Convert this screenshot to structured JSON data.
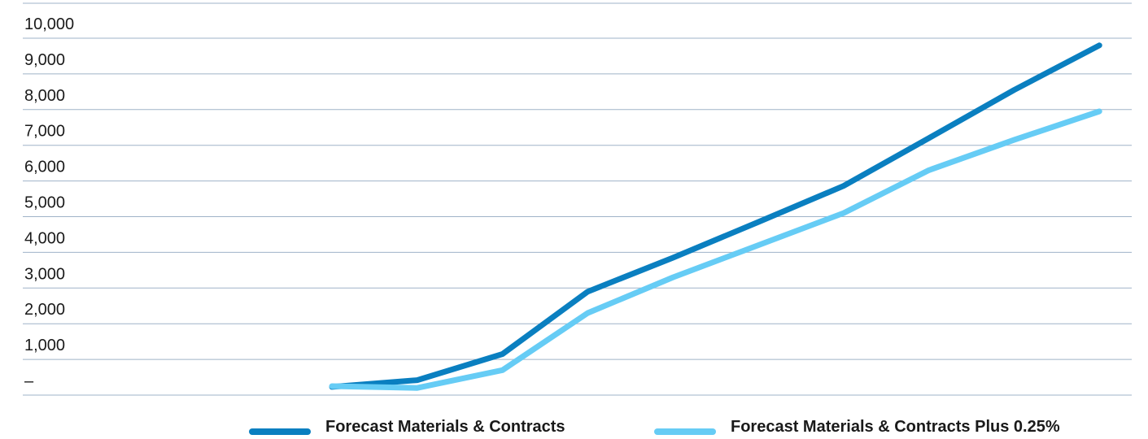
{
  "chart_data": {
    "type": "line",
    "x": [
      1,
      2,
      3,
      4,
      5,
      6,
      7,
      8,
      9,
      10,
      11,
      12,
      13,
      14,
      15,
      16,
      17,
      18,
      19,
      20,
      21,
      22,
      23,
      24,
      25,
      26,
      27,
      28
    ],
    "y_ticks": [
      {
        "value": 0,
        "label": "–"
      },
      {
        "value": 1000,
        "label": "1,000"
      },
      {
        "value": 2000,
        "label": "2,000"
      },
      {
        "value": 3000,
        "label": "3,000"
      },
      {
        "value": 4000,
        "label": "4,000"
      },
      {
        "value": 5000,
        "label": "5,000"
      },
      {
        "value": 6000,
        "label": "6,000"
      },
      {
        "value": 7000,
        "label": "7,000"
      },
      {
        "value": 8000,
        "label": "8,000"
      },
      {
        "value": 9000,
        "label": "9,000"
      },
      {
        "value": 10000,
        "label": "10,000"
      }
    ],
    "ylim": [
      0,
      11000
    ],
    "grid": true,
    "legend_position": "bottom-right",
    "series": [
      {
        "name": "Forecast Materials & Contracts",
        "color": "#0a7fc0",
        "values": [
          null,
          null,
          null,
          null,
          null,
          null,
          null,
          null,
          230,
          420,
          1150,
          2900,
          3850,
          4850,
          5860,
          7200,
          8550,
          9800,
          null,
          null,
          null,
          null,
          null,
          null,
          null,
          null,
          null,
          null
        ]
      },
      {
        "name": "Forecast Materials & Contracts Plus 0.25%",
        "color": "#66ccf5",
        "values": [
          null,
          null,
          null,
          null,
          null,
          null,
          null,
          null,
          250,
          200,
          700,
          2300,
          3300,
          4200,
          5100,
          6300,
          7150,
          7950,
          null,
          null,
          null,
          null,
          null,
          null,
          null,
          null,
          null,
          null
        ]
      }
    ]
  }
}
